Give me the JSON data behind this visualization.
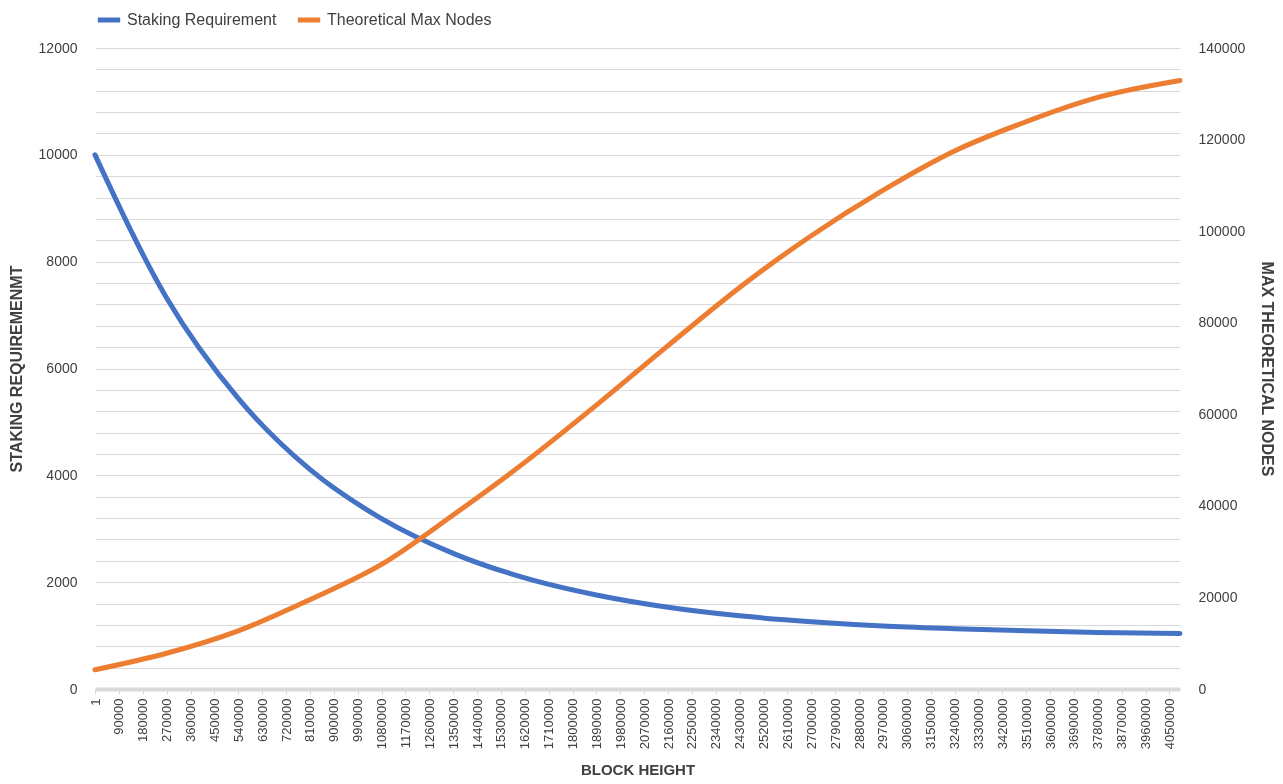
{
  "chart_data": {
    "type": "line",
    "xlabel": "BLOCK HEIGHT",
    "ylabel": "STAKING REQUIREMENMT",
    "y2label": "MAX THEORETICAL NODES",
    "x": [
      1,
      270000,
      540000,
      810000,
      1080000,
      1350000,
      1620000,
      1890000,
      2160000,
      2430000,
      2700000,
      2970000,
      3240000,
      3510000,
      3780000,
      4090000
    ],
    "series": [
      {
        "name": "Staking Requirement",
        "color": "#4472c4",
        "values": [
          10000,
          7320,
          5440,
          4110,
          3190,
          2540,
          2080,
          1760,
          1530,
          1370,
          1260,
          1180,
          1130,
          1090,
          1060,
          1040
        ]
      },
      {
        "name": "Theoretical Max Nodes",
        "color": "#ed7d31",
        "axis": "y2",
        "values": [
          4200,
          7800,
          12700,
          19500,
          27200,
          38000,
          49500,
          62000,
          75000,
          87700,
          99000,
          108900,
          117500,
          123900,
          129200,
          132900
        ]
      }
    ],
    "xlim": [
      1,
      4090000
    ],
    "xticks": [
      1,
      90000,
      180000,
      270000,
      360000,
      450000,
      540000,
      630000,
      720000,
      810000,
      900000,
      990000,
      1080000,
      1170000,
      1260000,
      1350000,
      1440000,
      1530000,
      1620000,
      1710000,
      1800000,
      1890000,
      1980000,
      2070000,
      2160000,
      2250000,
      2340000,
      2430000,
      2520000,
      2610000,
      2700000,
      2790000,
      2880000,
      2970000,
      3060000,
      3150000,
      3240000,
      3330000,
      3420000,
      3510000,
      3600000,
      3690000,
      3780000,
      3870000,
      3960000,
      4050000
    ],
    "ylim": [
      0,
      12000
    ],
    "yticks": [
      0,
      {
        "value": 400,
        "label": null
      },
      {
        "value": 800,
        "label": null
      },
      {
        "value": 1200,
        "label": null
      },
      {
        "value": 1600,
        "label": null
      },
      2000,
      {
        "value": 2400,
        "label": null
      },
      {
        "value": 2800,
        "label": null
      },
      {
        "value": 3200,
        "label": null
      },
      {
        "value": 3600,
        "label": null
      },
      4000,
      {
        "value": 4400,
        "label": null
      },
      {
        "value": 4800,
        "label": null
      },
      {
        "value": 5200,
        "label": null
      },
      {
        "value": 5600,
        "label": null
      },
      6000,
      {
        "value": 6400,
        "label": null
      },
      {
        "value": 6800,
        "label": null
      },
      {
        "value": 7200,
        "label": null
      },
      {
        "value": 7600,
        "label": null
      },
      8000,
      {
        "value": 8400,
        "label": null
      },
      {
        "value": 8800,
        "label": null
      },
      {
        "value": 9200,
        "label": null
      },
      {
        "value": 9600,
        "label": null
      },
      10000,
      {
        "value": 10400,
        "label": null
      },
      {
        "value": 10800,
        "label": null
      },
      {
        "value": 11200,
        "label": null
      },
      {
        "value": 11600,
        "label": null
      },
      12000
    ],
    "y2lim": [
      0,
      140000
    ],
    "y2ticks": [
      0,
      20000,
      40000,
      60000,
      80000,
      100000,
      120000,
      140000
    ],
    "grid": "y",
    "legend": "top",
    "marker": "none",
    "line_style": "solid"
  }
}
